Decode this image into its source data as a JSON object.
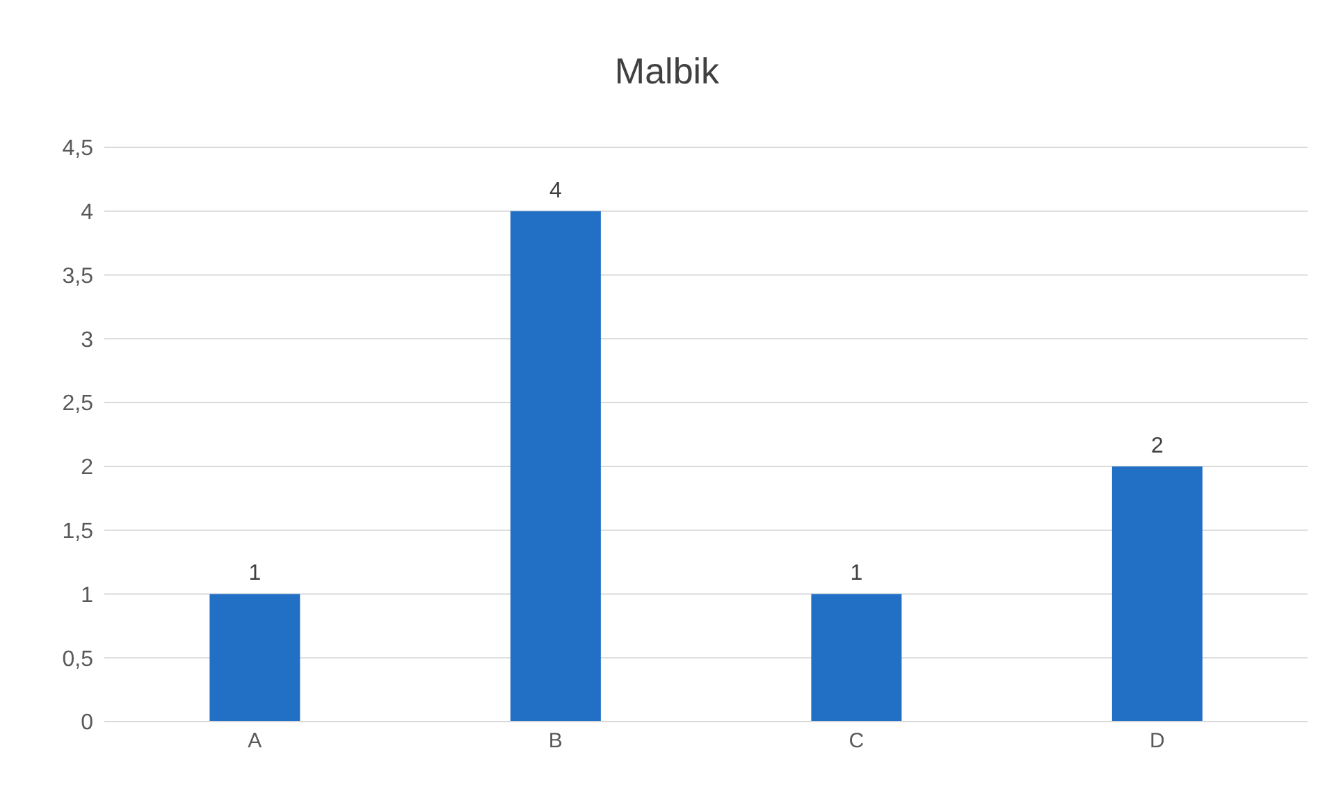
{
  "chart_data": {
    "type": "bar",
    "title": "Malbik",
    "categories": [
      "A",
      "B",
      "C",
      "D"
    ],
    "values": [
      1,
      4,
      1,
      2
    ],
    "color": "#2270c6",
    "ylim": [
      0,
      4.5
    ],
    "yticks": [
      0,
      {
        "value": 0.5,
        "label": "0,5"
      },
      1,
      {
        "value": 1.5,
        "label": "1,5"
      },
      2,
      {
        "value": 2.5,
        "label": "2,5"
      },
      3,
      {
        "value": 3.5,
        "label": "3,5"
      },
      4,
      {
        "value": 4.5,
        "label": "4,5"
      }
    ],
    "grid": "y",
    "data_labels": true
  }
}
